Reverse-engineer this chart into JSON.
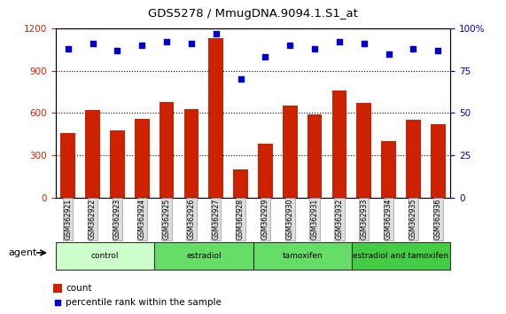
{
  "title": "GDS5278 / MmugDNA.9094.1.S1_at",
  "samples": [
    "GSM362921",
    "GSM362922",
    "GSM362923",
    "GSM362924",
    "GSM362925",
    "GSM362926",
    "GSM362927",
    "GSM362928",
    "GSM362929",
    "GSM362930",
    "GSM362931",
    "GSM362932",
    "GSM362933",
    "GSM362934",
    "GSM362935",
    "GSM362936"
  ],
  "counts": [
    460,
    620,
    480,
    560,
    680,
    630,
    1130,
    200,
    380,
    650,
    590,
    760,
    670,
    400,
    550,
    520
  ],
  "percentiles": [
    88,
    91,
    87,
    90,
    92,
    91,
    97,
    70,
    83,
    90,
    88,
    92,
    91,
    85,
    88,
    87
  ],
  "groups": [
    {
      "label": "control",
      "start": 0,
      "end": 4,
      "color": "#ccffcc"
    },
    {
      "label": "estradiol",
      "start": 4,
      "end": 8,
      "color": "#66dd66"
    },
    {
      "label": "tamoxifen",
      "start": 8,
      "end": 12,
      "color": "#66dd66"
    },
    {
      "label": "estradiol and tamoxifen",
      "start": 12,
      "end": 16,
      "color": "#44cc44"
    }
  ],
  "bar_color": "#cc2200",
  "dot_color": "#0000cc",
  "ylim_left": [
    0,
    1200
  ],
  "ylim_right": [
    0,
    100
  ],
  "yticks_left": [
    0,
    300,
    600,
    900,
    1200
  ],
  "yticks_right": [
    0,
    25,
    50,
    75,
    100
  ],
  "background_color": "#ffffff",
  "plot_bg_color": "#ffffff",
  "xlabel": "agent",
  "legend_count": "count",
  "legend_pct": "percentile rank within the sample"
}
